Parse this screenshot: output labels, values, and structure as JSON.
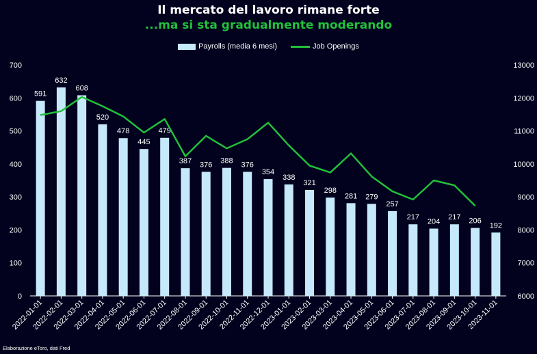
{
  "header": {
    "title": "Il mercato del lavoro rimane forte",
    "subtitle": "...ma si sta gradualmente moderando"
  },
  "footer": {
    "source": "Elaborazione eToro, dati Fred"
  },
  "colors": {
    "background": "#02021e",
    "bar": "#c6e8fb",
    "line": "#22c03a",
    "subtitle": "#22c03a",
    "text": "#ffffff"
  },
  "chart_data": {
    "type": "bar",
    "title": "Il mercato del lavoro rimane forte",
    "subtitle": "...ma si sta gradualmente moderando",
    "categories": [
      "2022-01-01",
      "2022-02-01",
      "2022-03-01",
      "2022-04-01",
      "2022-05-01",
      "2022-06-01",
      "2022-07-01",
      "2022-08-01",
      "2022-09-01",
      "2022-10-01",
      "2022-11-01",
      "2022-12-01",
      "2023-01-01",
      "2023-02-01",
      "2023-03-01",
      "2023-04-01",
      "2023-05-01",
      "2023-06-01",
      "2023-07-01",
      "2023-08-01",
      "2023-09-01",
      "2023-10-01",
      "2023-11-01"
    ],
    "series": [
      {
        "name": "Payrolls (media 6 mesi)",
        "type": "bar",
        "axis": "left",
        "values": [
          591,
          632,
          608,
          520,
          478,
          445,
          479,
          387,
          376,
          388,
          376,
          354,
          338,
          321,
          298,
          281,
          279,
          257,
          217,
          204,
          217,
          206,
          192
        ]
      },
      {
        "name": "Job Openings",
        "type": "line",
        "axis": "right",
        "values": [
          11480,
          11600,
          12030,
          11750,
          11440,
          10950,
          11360,
          10230,
          10850,
          10470,
          10750,
          11250,
          10560,
          9950,
          9740,
          10320,
          9620,
          9170,
          8920,
          9500,
          9350,
          8730,
          null
        ]
      }
    ],
    "ylim_left": [
      0,
      700
    ],
    "ylim_right": [
      6000,
      13000
    ],
    "yticks_left": [
      0,
      100,
      200,
      300,
      400,
      500,
      600,
      700
    ],
    "yticks_right": [
      6000,
      7000,
      8000,
      9000,
      10000,
      11000,
      12000,
      13000
    ],
    "xlabel": "",
    "ylabel": "",
    "grid": false,
    "legend": "top-center"
  }
}
